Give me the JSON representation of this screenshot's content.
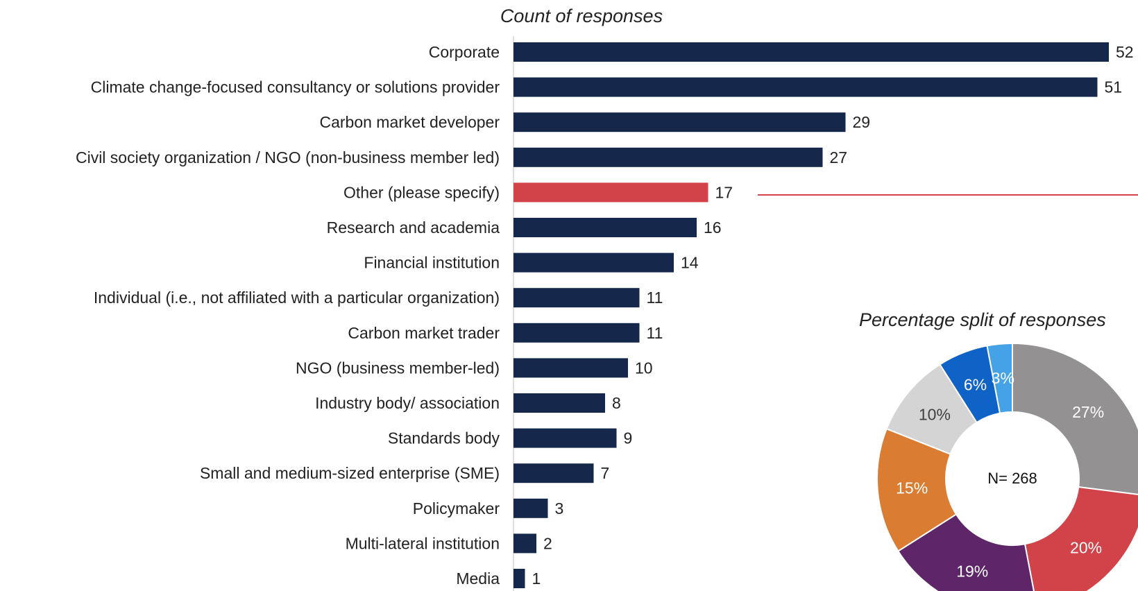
{
  "chart_data": [
    {
      "type": "bar",
      "orientation": "horizontal",
      "title": "Count of responses",
      "categories": [
        "Corporate",
        "Climate change-focused consultancy or solutions provider",
        "Carbon market developer",
        "Civil society organization / NGO (non-business member led)",
        "Other (please specify)",
        "Research and academia",
        "Financial institution",
        "Individual (i.e., not affiliated with a particular organization)",
        "Carbon market trader",
        "NGO (business member-led)",
        "Industry body/ association",
        "Standards body",
        "Small and medium-sized enterprise (SME)",
        "Policymaker",
        "Multi-lateral institution",
        "Media"
      ],
      "values": [
        52,
        51,
        29,
        27,
        17,
        16,
        14,
        11,
        11,
        10,
        8,
        9,
        7,
        3,
        2,
        1
      ],
      "highlight_category": "Other (please specify)",
      "bar_color": "#15284b",
      "highlight_color": "#d14348",
      "xlim": [
        0,
        52
      ],
      "grid": false
    },
    {
      "type": "pie",
      "variant": "donut",
      "title": "Percentage split of responses",
      "center_label": "N= 268",
      "values": [
        27,
        20,
        19,
        15,
        10,
        6,
        3
      ],
      "labels": [
        "27%",
        "20%",
        "19%",
        "15%",
        "10%",
        "6%",
        "3%"
      ],
      "colors": [
        "#939191",
        "#d14348",
        "#5e2569",
        "#da7c32",
        "#d4d4d4",
        "#0f62c6",
        "#45a2e6"
      ],
      "label_colors": [
        "#ffffff",
        "#ffffff",
        "#ffffff",
        "#ffffff",
        "#404040",
        "#ffffff",
        "#ffffff"
      ]
    }
  ]
}
